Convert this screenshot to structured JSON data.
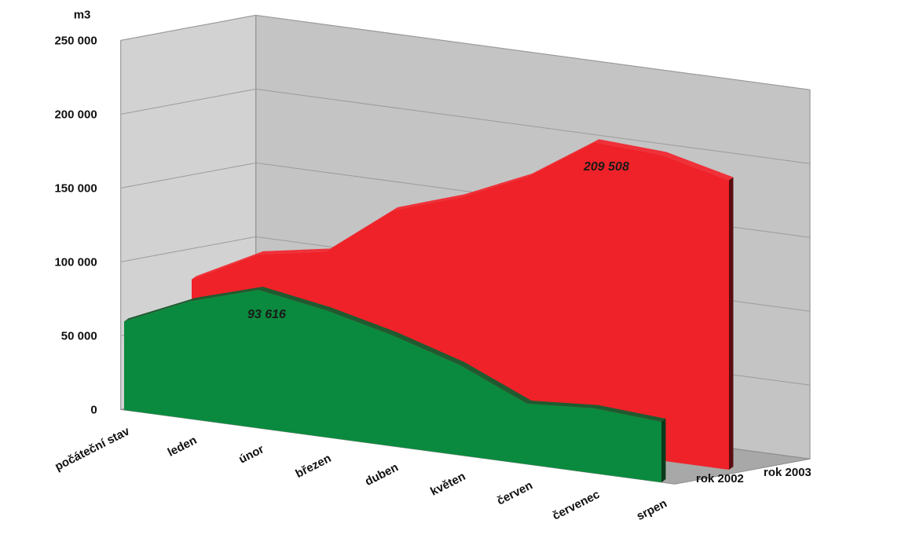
{
  "chart_data": {
    "type": "area",
    "ylabel": "m3",
    "ylim": [
      0,
      250000
    ],
    "yticks": [
      0,
      50000,
      100000,
      150000,
      200000,
      250000
    ],
    "ytick_labels": [
      "0",
      "50 000",
      "100 000",
      "150 000",
      "200 000",
      "250 000"
    ],
    "categories": [
      "počáteční stav",
      "leden",
      "únor",
      "březen",
      "duben",
      "květen",
      "červen",
      "červenec",
      "srpen"
    ],
    "series": [
      {
        "name": "rok 2003",
        "color": "#ee2228",
        "values": [
          80000,
          103000,
          111000,
          145000,
          160000,
          180000,
          209508,
          207000,
          196000
        ]
      },
      {
        "name": "rok 2002",
        "color": "#0a8a3e",
        "values": [
          60000,
          80000,
          93616,
          86000,
          75000,
          61000,
          41000,
          44000,
          41000
        ]
      }
    ],
    "data_labels": [
      {
        "series": "rok 2003",
        "category": "červen",
        "text": "209 508"
      },
      {
        "series": "rok 2002",
        "category": "únor",
        "text": "93 616"
      }
    ],
    "grid": true,
    "style": "3d",
    "colors": {
      "wall": "#c4c4c4",
      "floor": "#a8a8a8",
      "grid": "#9b9b9b"
    }
  }
}
